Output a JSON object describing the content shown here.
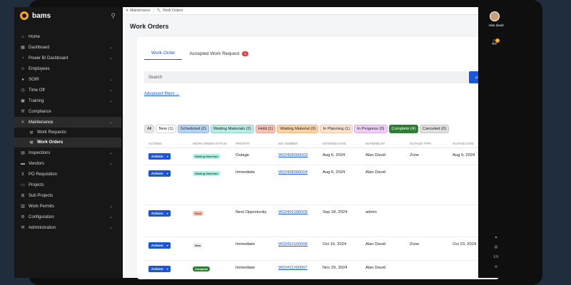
{
  "app": {
    "name": "bams"
  },
  "user": {
    "name": "Alan david",
    "notifications": "2"
  },
  "sidebar": {
    "items": [
      {
        "label": "Home",
        "icon": "home-icon",
        "chevron": false
      },
      {
        "label": "Dashboard",
        "icon": "dashboard-icon",
        "chevron": true
      },
      {
        "label": "Power BI Dashboard",
        "icon": "chart-icon",
        "chevron": true
      },
      {
        "label": "Employees",
        "icon": "users-icon",
        "chevron": false
      },
      {
        "label": "SOIR",
        "icon": "user-icon",
        "chevron": true
      },
      {
        "label": "Time Off",
        "icon": "clock-icon",
        "chevron": true
      },
      {
        "label": "Training",
        "icon": "training-icon",
        "chevron": true
      },
      {
        "label": "Compliance",
        "icon": "wrench-icon",
        "chevron": false
      },
      {
        "label": "Maintenance",
        "icon": "tools-icon",
        "chevron": true,
        "active": true
      },
      {
        "label": "Work Requests",
        "icon": "wrench-icon",
        "sub": true
      },
      {
        "label": "Work Orders",
        "icon": "wrench-icon",
        "sub": true,
        "current": true
      },
      {
        "label": "Inspections",
        "icon": "clipboard-icon",
        "chevron": true
      },
      {
        "label": "Vendors",
        "icon": "truck-icon",
        "chevron": true
      },
      {
        "label": "PO Requisition",
        "icon": "cart-icon",
        "chevron": false
      },
      {
        "label": "Projects",
        "icon": "folder-icon",
        "chevron": false
      },
      {
        "label": "Sub Projects",
        "icon": "sitemap-icon",
        "chevron": false
      },
      {
        "label": "Work Permits",
        "icon": "permit-icon",
        "chevron": true
      },
      {
        "label": "Configuration",
        "icon": "gear-icon",
        "chevron": true
      },
      {
        "label": "Administration",
        "icon": "wrench-icon",
        "chevron": true
      }
    ]
  },
  "breadcrumb": {
    "first": "Maintenance",
    "second": "Work Orders"
  },
  "page": {
    "title": "Work Orders"
  },
  "tabs": [
    {
      "label": "Work Order"
    },
    {
      "label": "Accepted Work Request",
      "count": "6"
    }
  ],
  "search": {
    "placeholder": "Search"
  },
  "advanced_filters": "Advanced filters",
  "filters": [
    {
      "label": "All",
      "bg": "#e4e6e8",
      "border": "#cfd3d6"
    },
    {
      "label": "New (1)",
      "bg": "#ffffff",
      "border": "#cfd3d6"
    },
    {
      "label": "Scheduled (2)",
      "bg": "#b9d4f3",
      "border": "#8fb6e6"
    },
    {
      "label": "Waiting Materials (2)",
      "bg": "#b8ece4",
      "border": "#8dd6cb"
    },
    {
      "label": "Hold (1)",
      "bg": "#f6c2b6",
      "border": "#eaa596"
    },
    {
      "label": "Waiting Material (0)",
      "bg": "#fbd3a6",
      "border": "#f1b677"
    },
    {
      "label": "In Planning (1)",
      "bg": "#fde3d0",
      "border": "#f3c6a6"
    },
    {
      "label": "In Progress (0)",
      "bg": "#ecd1f5",
      "border": "#d6ace8"
    },
    {
      "label": "Complete (4)",
      "bg": "#2e7d32",
      "border": "#2e7d32",
      "color": "#ffffff"
    },
    {
      "label": "Canceled (0)",
      "bg": "#e0e0e0",
      "border": "#c4c4c4"
    }
  ],
  "table": {
    "headers": [
      "Actions",
      "Work Order Status",
      "Priority",
      "WO Number",
      "Entered Date",
      "Entered By",
      "Outage Type",
      "Outage Date"
    ],
    "rows": [
      {
        "actions": "Actions",
        "status": "Waiting Materials",
        "status_bg": "#b8ece4",
        "status_color": "#1d5e55",
        "priority": "Outage",
        "wo": "W02408060003",
        "entered_date": "Aug 6, 2024",
        "entered_by": "Alan David",
        "outage_type": "Zone",
        "outage_date": "Aug 9, 2024"
      },
      {
        "actions": "Actions",
        "status": "Waiting Materials",
        "status_bg": "#b8ece4",
        "status_color": "#1d5e55",
        "priority": "Immediate",
        "wo": "W02408060004",
        "entered_date": "Aug 6, 2024",
        "entered_by": "Alan David",
        "outage_type": "",
        "outage_date": ""
      },
      {
        "actions": "Actions",
        "status": "Hold",
        "status_bg": "#f6c2b6",
        "status_color": "#7a2e1e",
        "priority": "Next Opportunity",
        "wo": "W02409180005",
        "entered_date": "Sep 18, 2024",
        "entered_by": "admin",
        "outage_type": "",
        "outage_date": ""
      },
      {
        "actions": "Actions",
        "status": "New",
        "status_bg": "#eceeef",
        "status_color": "#333333",
        "priority": "Immediate",
        "wo": "W02410160006",
        "entered_date": "Oct 16, 2024",
        "entered_by": "Alan David",
        "outage_type": "Zone",
        "outage_date": "Oct 23, 2024"
      },
      {
        "actions": "Actions",
        "status": "Complete",
        "status_bg": "#2e7d32",
        "status_color": "#ffffff",
        "priority": "Immediate",
        "wo": "W02411290007",
        "entered_date": "Nov 29, 2024",
        "entered_by": "Alan David",
        "outage_type": "",
        "outage_date": ""
      }
    ]
  },
  "rail": {
    "lang": "EN"
  }
}
